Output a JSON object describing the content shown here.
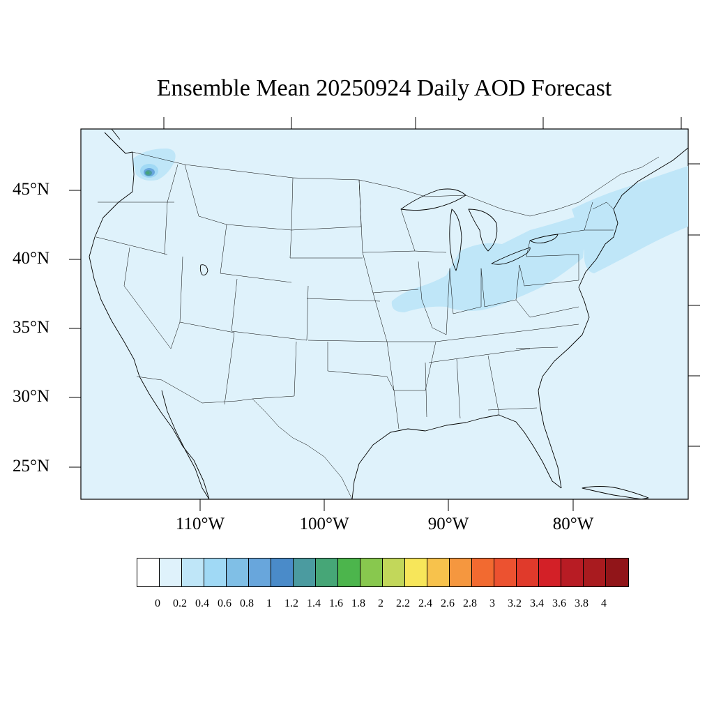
{
  "title": "Ensemble Mean 20250924 Daily AOD Forecast",
  "map": {
    "background_color": "#dff2fb",
    "lat_labels": [
      "45°N",
      "40°N",
      "35°N",
      "30°N",
      "25°N"
    ],
    "lon_labels": [
      "110°W",
      "100°W",
      "90°W",
      "80°W"
    ]
  },
  "colorbar": {
    "levels": [
      "0",
      "0.2",
      "0.4",
      "0.6",
      "0.8",
      "1",
      "1.2",
      "1.4",
      "1.6",
      "1.8",
      "2",
      "2.2",
      "2.4",
      "2.6",
      "2.8",
      "3",
      "3.2",
      "3.4",
      "3.6",
      "3.8",
      "4"
    ],
    "colors": [
      "#ffffff",
      "#dff2fb",
      "#bfe6f8",
      "#a0d9f5",
      "#80bfe6",
      "#68a6dc",
      "#4a8bc9",
      "#4b9ba0",
      "#46a677",
      "#4cb54c",
      "#88c84e",
      "#c2d75a",
      "#f7e65a",
      "#f7c24c",
      "#f5973f",
      "#f26a30",
      "#ec5230",
      "#e03a2b",
      "#d32027",
      "#b81c24",
      "#a91b1f",
      "#911519"
    ]
  }
}
